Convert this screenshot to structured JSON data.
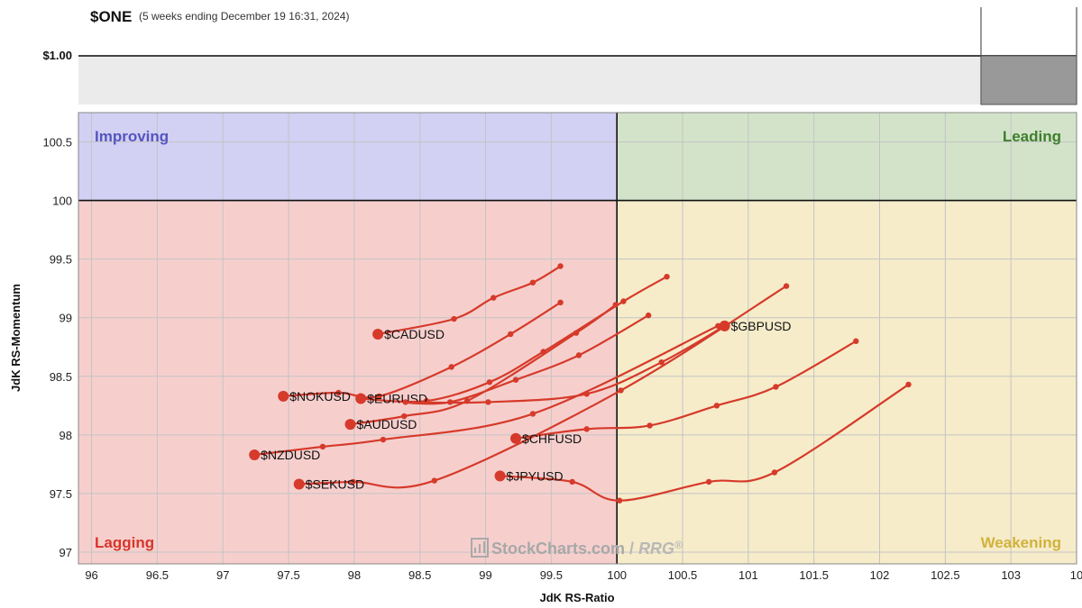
{
  "header": {
    "symbol": "$ONE",
    "subtitle": "(5 weeks ending December 19 16:31, 2024)",
    "price_label": "$1.00"
  },
  "watermark": {
    "brand": "StockCharts.com",
    "sep": " / ",
    "product": "RRG",
    "mark": "®"
  },
  "chart_data": {
    "type": "scatter",
    "subtype": "relative-rotation-graph",
    "xlabel": "JdK RS-Ratio",
    "ylabel": "JdK RS-Momentum",
    "xlim": [
      95.9,
      103.5
    ],
    "ylim": [
      96.9,
      100.75
    ],
    "x_ticks": [
      "96",
      "96.5",
      "97",
      "97.5",
      "98",
      "98.5",
      "99",
      "99.5",
      "100",
      "100.5",
      "101",
      "101.5",
      "102",
      "102.5",
      "103",
      "10"
    ],
    "y_ticks": [
      "97",
      "97.5",
      "98",
      "98.5",
      "99",
      "99.5",
      "100",
      "100.5"
    ],
    "center": [
      100,
      100
    ],
    "grid": true,
    "quadrants": [
      {
        "name": "Improving",
        "position": "top-left",
        "fill": "#d2d0f3",
        "text_color": "#5555c0"
      },
      {
        "name": "Leading",
        "position": "top-right",
        "fill": "#d3e3c9",
        "text_color": "#3f7f2f"
      },
      {
        "name": "Lagging",
        "position": "bottom-left",
        "fill": "#f6cfcd",
        "text_color": "#d6362b"
      },
      {
        "name": "Weakening",
        "position": "bottom-right",
        "fill": "#f6ecca",
        "text_color": "#d1b23a"
      }
    ],
    "tail_color": "#d63a2a",
    "series": [
      {
        "name": "$CADUSD",
        "points": [
          [
            99.57,
            99.44
          ],
          [
            99.36,
            99.3
          ],
          [
            99.06,
            99.17
          ],
          [
            98.76,
            98.99
          ],
          [
            98.18,
            98.86
          ]
        ]
      },
      {
        "name": "$NOKUSD",
        "points": [
          [
            99.57,
            99.13
          ],
          [
            99.19,
            98.86
          ],
          [
            98.74,
            98.58
          ],
          [
            98.19,
            98.33
          ],
          [
            97.88,
            98.36
          ],
          [
            97.46,
            98.33
          ]
        ]
      },
      {
        "name": "$EURUSD",
        "points": [
          [
            100.38,
            99.35
          ],
          [
            100.05,
            99.14
          ],
          [
            99.44,
            98.71
          ],
          [
            99.03,
            98.45
          ],
          [
            98.55,
            98.29
          ],
          [
            98.05,
            98.31
          ]
        ]
      },
      {
        "name": "$GBPUSD",
        "points": [
          [
            100.24,
            99.02
          ],
          [
            99.71,
            98.68
          ],
          [
            99.23,
            98.47
          ],
          [
            98.73,
            98.28
          ],
          [
            98.39,
            98.28
          ],
          [
            99.02,
            98.28
          ],
          [
            99.77,
            98.35
          ],
          [
            100.34,
            98.62
          ],
          [
            100.82,
            98.93
          ]
        ]
      },
      {
        "name": "$AUDUSD",
        "points": [
          [
            99.99,
            99.11
          ],
          [
            99.69,
            98.87
          ],
          [
            98.86,
            98.29
          ],
          [
            98.38,
            98.16
          ],
          [
            97.97,
            98.09
          ]
        ]
      },
      {
        "name": "$NZDUSD",
        "points": [
          [
            100.77,
            98.93
          ],
          [
            99.36,
            98.18
          ],
          [
            98.22,
            97.96
          ],
          [
            97.76,
            97.9
          ],
          [
            97.24,
            97.83
          ]
        ]
      },
      {
        "name": "$SEKUSD",
        "points": [
          [
            101.29,
            99.27
          ],
          [
            100.03,
            98.38
          ],
          [
            98.61,
            97.61
          ],
          [
            97.99,
            97.6
          ],
          [
            97.58,
            97.58
          ]
        ]
      },
      {
        "name": "$CHFUSD",
        "points": [
          [
            101.82,
            98.8
          ],
          [
            101.21,
            98.41
          ],
          [
            100.76,
            98.25
          ],
          [
            100.25,
            98.08
          ],
          [
            99.77,
            98.05
          ],
          [
            99.23,
            97.97
          ]
        ]
      },
      {
        "name": "$JPYUSD",
        "points": [
          [
            102.22,
            98.43
          ],
          [
            101.2,
            97.68
          ],
          [
            100.7,
            97.6
          ],
          [
            100.02,
            97.44
          ],
          [
            99.66,
            97.6
          ],
          [
            99.11,
            97.65
          ]
        ]
      }
    ]
  }
}
